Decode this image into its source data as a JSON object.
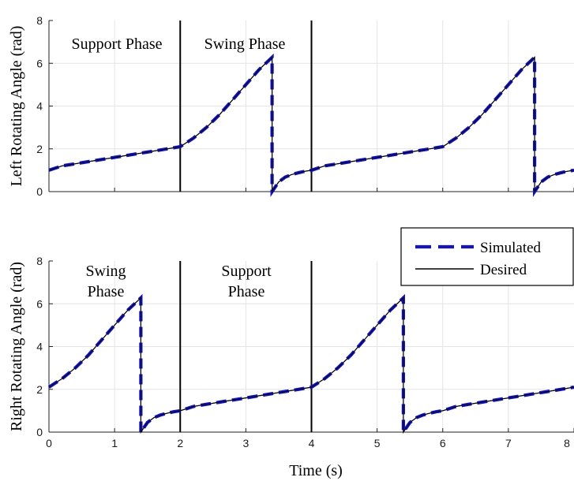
{
  "chart_data": [
    {
      "type": "line",
      "panel": "top",
      "ylabel": "Left Rotating Angle (rad)",
      "xlabel": "",
      "xlim": [
        0,
        8
      ],
      "ylim": [
        0,
        8
      ],
      "xticks": [
        0,
        1,
        2,
        3,
        4,
        5,
        6,
        7,
        8
      ],
      "yticks": [
        "0",
        "2",
        "4",
        "6",
        "8"
      ],
      "show_x_tick_labels": false,
      "grid": true,
      "phase_lines_x": [
        2,
        4
      ],
      "phase_labels": [
        "Support Phase",
        "Swing Phase"
      ],
      "series": [
        {
          "name": "Simulated",
          "color": "#1515bb",
          "style": "dashed",
          "x": [
            0,
            0.2,
            0.4,
            0.6,
            0.8,
            1.0,
            1.2,
            1.4,
            1.6,
            1.8,
            2.0,
            2.2,
            2.4,
            2.6,
            2.8,
            3.0,
            3.2,
            3.4,
            3.4,
            3.5,
            3.6,
            3.7,
            3.8,
            3.9,
            4.0,
            4.2,
            4.4,
            4.6,
            4.8,
            5.0,
            5.2,
            5.4,
            5.6,
            5.8,
            6.0,
            6.2,
            6.4,
            6.6,
            6.8,
            7.0,
            7.2,
            7.4,
            7.4,
            7.5,
            7.6,
            7.7,
            7.8,
            7.9,
            8.0
          ],
          "y": [
            1.0,
            1.2,
            1.3,
            1.4,
            1.5,
            1.6,
            1.7,
            1.8,
            1.9,
            2.0,
            2.1,
            2.5,
            3.0,
            3.6,
            4.3,
            5.0,
            5.7,
            6.28,
            0.0,
            0.45,
            0.68,
            0.8,
            0.88,
            0.95,
            1.0,
            1.2,
            1.3,
            1.4,
            1.5,
            1.6,
            1.7,
            1.8,
            1.9,
            2.0,
            2.1,
            2.5,
            3.0,
            3.6,
            4.3,
            5.0,
            5.7,
            6.28,
            0.0,
            0.45,
            0.68,
            0.8,
            0.88,
            0.95,
            1.0
          ]
        },
        {
          "name": "Desired",
          "color": "#000000",
          "style": "solid",
          "x": [
            0,
            0.2,
            0.4,
            0.6,
            0.8,
            1.0,
            1.2,
            1.4,
            1.6,
            1.8,
            2.0,
            2.2,
            2.4,
            2.6,
            2.8,
            3.0,
            3.2,
            3.4,
            3.4,
            3.5,
            3.6,
            3.7,
            3.8,
            3.9,
            4.0,
            4.2,
            4.4,
            4.6,
            4.8,
            5.0,
            5.2,
            5.4,
            5.6,
            5.8,
            6.0,
            6.2,
            6.4,
            6.6,
            6.8,
            7.0,
            7.2,
            7.4,
            7.4,
            7.5,
            7.6,
            7.7,
            7.8,
            7.9,
            8.0
          ],
          "y": [
            1.0,
            1.2,
            1.3,
            1.4,
            1.5,
            1.6,
            1.7,
            1.8,
            1.9,
            2.0,
            2.1,
            2.5,
            3.0,
            3.6,
            4.3,
            5.0,
            5.7,
            6.28,
            0.0,
            0.45,
            0.68,
            0.8,
            0.88,
            0.95,
            1.0,
            1.2,
            1.3,
            1.4,
            1.5,
            1.6,
            1.7,
            1.8,
            1.9,
            2.0,
            2.1,
            2.5,
            3.0,
            3.6,
            4.3,
            5.0,
            5.7,
            6.28,
            0.0,
            0.45,
            0.68,
            0.8,
            0.88,
            0.95,
            1.0
          ]
        }
      ]
    },
    {
      "type": "line",
      "panel": "bottom",
      "ylabel": "Right Rotating Angle (rad)",
      "xlabel": "Time (s)",
      "xlim": [
        0,
        8
      ],
      "ylim": [
        0,
        8
      ],
      "xticks": [
        0,
        1,
        2,
        3,
        4,
        5,
        6,
        7,
        8
      ],
      "xticklabels": [
        "0",
        "1",
        "2",
        "3",
        "4",
        "5",
        "6",
        "7",
        "8"
      ],
      "yticks": [
        "0",
        "2",
        "4",
        "6",
        "8"
      ],
      "show_x_tick_labels": true,
      "grid": true,
      "phase_lines_x": [
        2,
        4
      ],
      "phase_labels": [
        [
          "Swing",
          "Phase"
        ],
        [
          "Support",
          "Phase"
        ]
      ],
      "legend": {
        "placement": "top-right",
        "entries": [
          "Simulated",
          "Desired"
        ]
      },
      "series": [
        {
          "name": "Simulated",
          "color": "#1515bb",
          "style": "dashed",
          "x": [
            0,
            0.2,
            0.4,
            0.6,
            0.8,
            1.0,
            1.2,
            1.4,
            1.4,
            1.5,
            1.6,
            1.7,
            1.8,
            1.9,
            2.0,
            2.2,
            2.4,
            2.6,
            2.8,
            3.0,
            3.2,
            3.4,
            3.6,
            3.8,
            4.0,
            4.2,
            4.4,
            4.6,
            4.8,
            5.0,
            5.2,
            5.4,
            5.4,
            5.5,
            5.6,
            5.7,
            5.8,
            5.9,
            6.0,
            6.2,
            6.4,
            6.6,
            6.8,
            7.0,
            7.2,
            7.4,
            7.6,
            7.8,
            8.0
          ],
          "y": [
            2.1,
            2.5,
            3.0,
            3.6,
            4.3,
            5.0,
            5.7,
            6.28,
            0.0,
            0.45,
            0.68,
            0.8,
            0.88,
            0.95,
            1.0,
            1.2,
            1.3,
            1.4,
            1.5,
            1.6,
            1.7,
            1.8,
            1.9,
            2.0,
            2.1,
            2.5,
            3.0,
            3.6,
            4.3,
            5.0,
            5.7,
            6.28,
            0.0,
            0.45,
            0.68,
            0.8,
            0.88,
            0.95,
            1.0,
            1.2,
            1.3,
            1.4,
            1.5,
            1.6,
            1.7,
            1.8,
            1.9,
            2.0,
            2.1
          ]
        },
        {
          "name": "Desired",
          "color": "#000000",
          "style": "solid",
          "x": [
            0,
            0.2,
            0.4,
            0.6,
            0.8,
            1.0,
            1.2,
            1.4,
            1.4,
            1.5,
            1.6,
            1.7,
            1.8,
            1.9,
            2.0,
            2.2,
            2.4,
            2.6,
            2.8,
            3.0,
            3.2,
            3.4,
            3.6,
            3.8,
            4.0,
            4.2,
            4.4,
            4.6,
            4.8,
            5.0,
            5.2,
            5.4,
            5.4,
            5.5,
            5.6,
            5.7,
            5.8,
            5.9,
            6.0,
            6.2,
            6.4,
            6.6,
            6.8,
            7.0,
            7.2,
            7.4,
            7.6,
            7.8,
            8.0
          ],
          "y": [
            2.1,
            2.5,
            3.0,
            3.6,
            4.3,
            5.0,
            5.7,
            6.28,
            0.0,
            0.45,
            0.68,
            0.8,
            0.88,
            0.95,
            1.0,
            1.2,
            1.3,
            1.4,
            1.5,
            1.6,
            1.7,
            1.8,
            1.9,
            2.0,
            2.1,
            2.5,
            3.0,
            3.6,
            4.3,
            5.0,
            5.7,
            6.28,
            0.0,
            0.45,
            0.68,
            0.8,
            0.88,
            0.95,
            1.0,
            1.2,
            1.3,
            1.4,
            1.5,
            1.6,
            1.7,
            1.8,
            1.9,
            2.0,
            2.1
          ]
        }
      ]
    }
  ]
}
